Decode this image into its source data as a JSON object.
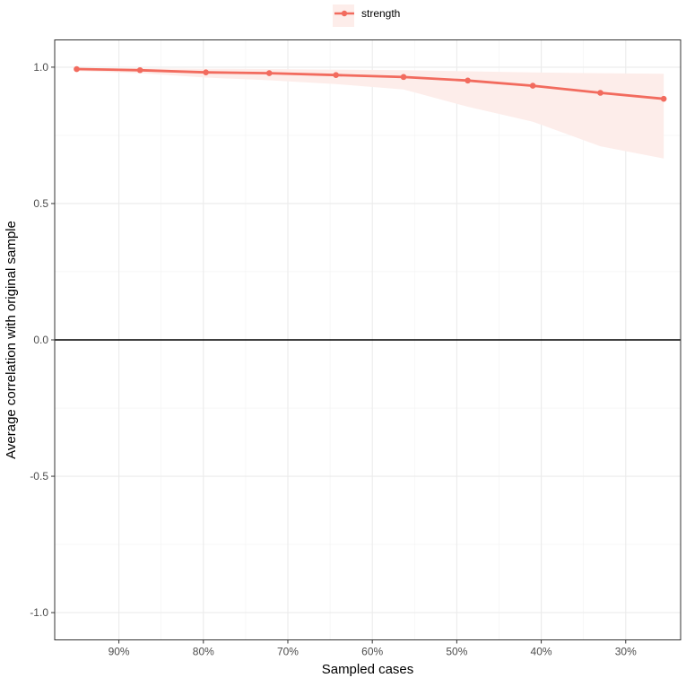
{
  "chart_data": {
    "type": "line",
    "xlabel": "Sampled cases",
    "ylabel": "Average correlation with original sample",
    "x_axis": {
      "reversed": true,
      "lim": [
        0.235,
        0.976
      ],
      "ticks": [
        0.9,
        0.8,
        0.7,
        0.6,
        0.5,
        0.4,
        0.3
      ],
      "tick_labels": [
        "90%",
        "80%",
        "70%",
        "60%",
        "50%",
        "40%",
        "30%"
      ]
    },
    "y_axis": {
      "lim": [
        -1.1,
        1.1
      ],
      "ticks": [
        -1.0,
        -0.5,
        0.0,
        0.5,
        1.0
      ],
      "tick_labels": [
        "-1.0",
        "-0.5",
        "0.0",
        "0.5",
        "1.0"
      ]
    },
    "grid": true,
    "hline": 0,
    "legend": {
      "position": "top",
      "entries": [
        "strength"
      ]
    },
    "series": [
      {
        "name": "strength",
        "color": "#F26B5E",
        "ribbon_color": "#FDEDEA",
        "x": [
          0.95,
          0.875,
          0.797,
          0.722,
          0.643,
          0.563,
          0.487,
          0.41,
          0.33,
          0.255
        ],
        "values": [
          0.993,
          0.989,
          0.981,
          0.978,
          0.971,
          0.964,
          0.951,
          0.932,
          0.906,
          0.884
        ],
        "lower": [
          0.986,
          0.978,
          0.962,
          0.952,
          0.938,
          0.918,
          0.855,
          0.8,
          0.71,
          0.665
        ],
        "upper": [
          0.997,
          0.996,
          0.994,
          0.993,
          0.991,
          0.989,
          0.985,
          0.981,
          0.978,
          0.976
        ]
      }
    ]
  }
}
